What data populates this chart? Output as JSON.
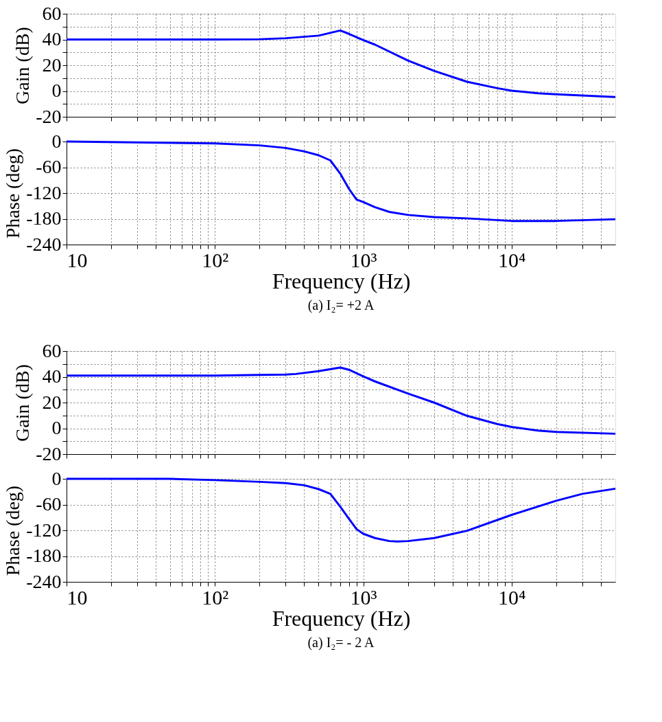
{
  "chart_data": [
    {
      "type": "line",
      "ylabel": "Gain (dB)",
      "x": [
        10,
        100,
        200,
        300,
        500,
        700,
        800,
        1000,
        1200,
        2000,
        3000,
        5000,
        8000,
        10000,
        15000,
        20000,
        50000
      ],
      "series": [
        {
          "color": "#0000ff",
          "values": [
            40,
            40,
            40.2,
            41,
            43,
            47,
            44.4,
            39.5,
            36,
            23.7,
            15.7,
            7.2,
            2.2,
            0.3,
            -1.7,
            -2.5,
            -4.7
          ]
        }
      ],
      "xlim": [
        10,
        50000
      ],
      "ylim": [
        -20,
        60
      ],
      "log": "x",
      "grid": true,
      "tick_labels": "y",
      "line_style": "solid",
      "xticks": [
        10,
        20,
        30,
        40,
        50,
        60,
        70,
        80,
        90,
        100,
        200,
        300,
        400,
        500,
        600,
        700,
        800,
        900,
        1000,
        2000,
        3000,
        4000,
        5000,
        6000,
        7000,
        8000,
        9000,
        10000,
        20000,
        30000,
        40000
      ],
      "yticks": [
        -20,
        {
          "value": -10,
          "label": null
        },
        0,
        {
          "value": 10,
          "label": null
        },
        20,
        {
          "value": 30,
          "label": null
        },
        40,
        {
          "value": 50,
          "label": null
        },
        60
      ]
    },
    {
      "type": "line",
      "ylabel": "Phase (deg)",
      "xlabel": "Frequency  (Hz)",
      "annotations": [
        "(a) I₂= +2 A"
      ],
      "x": [
        10,
        100,
        200,
        300,
        400,
        500,
        600,
        700,
        800,
        900,
        1000,
        1200,
        1500,
        2000,
        3000,
        5000,
        10000,
        20000,
        50000
      ],
      "series": [
        {
          "color": "#0000ff",
          "values": [
            0,
            -4.5,
            -9,
            -15,
            -23,
            -32,
            -44,
            -75,
            -110,
            -135,
            -141,
            -153,
            -164,
            -171,
            -176,
            -179,
            -185,
            -185,
            -181
          ]
        }
      ],
      "xlim": [
        10,
        50000
      ],
      "ylim": [
        -240,
        0
      ],
      "log": "x",
      "grid": true,
      "line_style": "solid",
      "xticks": [
        10,
        {
          "value": 20,
          "label": null
        },
        {
          "value": 30,
          "label": null
        },
        {
          "value": 40,
          "label": null
        },
        {
          "value": 50,
          "label": null
        },
        {
          "value": 60,
          "label": null
        },
        {
          "value": 70,
          "label": null
        },
        {
          "value": 80,
          "label": null
        },
        {
          "value": 90,
          "label": null
        },
        {
          "value": 100,
          "label": "10²"
        },
        {
          "value": 200,
          "label": null
        },
        {
          "value": 300,
          "label": null
        },
        {
          "value": 400,
          "label": null
        },
        {
          "value": 500,
          "label": null
        },
        {
          "value": 600,
          "label": null
        },
        {
          "value": 700,
          "label": null
        },
        {
          "value": 800,
          "label": null
        },
        {
          "value": 900,
          "label": null
        },
        {
          "value": 1000,
          "label": "10³"
        },
        {
          "value": 2000,
          "label": null
        },
        {
          "value": 3000,
          "label": null
        },
        {
          "value": 4000,
          "label": null
        },
        {
          "value": 5000,
          "label": null
        },
        {
          "value": 6000,
          "label": null
        },
        {
          "value": 7000,
          "label": null
        },
        {
          "value": 8000,
          "label": null
        },
        {
          "value": 9000,
          "label": null
        },
        {
          "value": 10000,
          "label": "10⁴"
        },
        {
          "value": 20000,
          "label": null
        },
        {
          "value": 30000,
          "label": null
        },
        {
          "value": 40000,
          "label": null
        }
      ],
      "yticks": [
        -240,
        -180,
        -120,
        -60,
        0
      ]
    },
    {
      "type": "line",
      "ylabel": "Gain (dB)",
      "x": [
        10,
        100,
        200,
        300,
        350,
        500,
        700,
        800,
        1000,
        1200,
        2000,
        3000,
        5000,
        8000,
        10000,
        15000,
        20000,
        50000
      ],
      "series": [
        {
          "color": "#0000ff",
          "values": [
            41,
            41,
            41.5,
            41.7,
            42.2,
            44.4,
            47.2,
            45.5,
            40.3,
            36.4,
            27,
            20,
            9.7,
            3.3,
            1.1,
            -1.7,
            -2.8,
            -4.2
          ]
        }
      ],
      "xlim": [
        10,
        50000
      ],
      "ylim": [
        -20,
        60
      ],
      "log": "x",
      "grid": true,
      "tick_labels": "y",
      "line_style": "solid",
      "xticks": [
        10,
        20,
        30,
        40,
        50,
        60,
        70,
        80,
        90,
        100,
        200,
        300,
        400,
        500,
        600,
        700,
        800,
        900,
        1000,
        2000,
        3000,
        4000,
        5000,
        6000,
        7000,
        8000,
        9000,
        10000,
        20000,
        30000,
        40000
      ],
      "yticks": [
        -20,
        {
          "value": -10,
          "label": null
        },
        0,
        {
          "value": 10,
          "label": null
        },
        20,
        {
          "value": 30,
          "label": null
        },
        40,
        {
          "value": 50,
          "label": null
        },
        60
      ]
    },
    {
      "type": "line",
      "ylabel": "Phase (deg)",
      "xlabel": "Frequency  (Hz)",
      "annotations": [
        "(a) I₂= - 2 A"
      ],
      "x": [
        10,
        50,
        100,
        200,
        300,
        400,
        500,
        600,
        700,
        800,
        900,
        1000,
        1200,
        1500,
        1700,
        2000,
        3000,
        5000,
        10000,
        20000,
        30000,
        50000
      ],
      "series": [
        {
          "color": "#0000ff",
          "values": [
            0,
            0,
            -3,
            -7,
            -10,
            -15,
            -24,
            -35,
            -65,
            -93,
            -117,
            -128,
            -138,
            -145,
            -146,
            -145,
            -138,
            -121,
            -84,
            -51,
            -35,
            -23
          ]
        }
      ],
      "xlim": [
        10,
        50000
      ],
      "ylim": [
        -240,
        0
      ],
      "log": "x",
      "grid": true,
      "line_style": "solid",
      "xticks": [
        10,
        {
          "value": 20,
          "label": null
        },
        {
          "value": 30,
          "label": null
        },
        {
          "value": 40,
          "label": null
        },
        {
          "value": 50,
          "label": null
        },
        {
          "value": 60,
          "label": null
        },
        {
          "value": 70,
          "label": null
        },
        {
          "value": 80,
          "label": null
        },
        {
          "value": 90,
          "label": null
        },
        {
          "value": 100,
          "label": "10²"
        },
        {
          "value": 200,
          "label": null
        },
        {
          "value": 300,
          "label": null
        },
        {
          "value": 400,
          "label": null
        },
        {
          "value": 500,
          "label": null
        },
        {
          "value": 600,
          "label": null
        },
        {
          "value": 700,
          "label": null
        },
        {
          "value": 800,
          "label": null
        },
        {
          "value": 900,
          "label": null
        },
        {
          "value": 1000,
          "label": "10³"
        },
        {
          "value": 2000,
          "label": null
        },
        {
          "value": 3000,
          "label": null
        },
        {
          "value": 4000,
          "label": null
        },
        {
          "value": 5000,
          "label": null
        },
        {
          "value": 6000,
          "label": null
        },
        {
          "value": 7000,
          "label": null
        },
        {
          "value": 8000,
          "label": null
        },
        {
          "value": 9000,
          "label": null
        },
        {
          "value": 10000,
          "label": "10⁴"
        },
        {
          "value": 20000,
          "label": null
        },
        {
          "value": 30000,
          "label": null
        },
        {
          "value": 40000,
          "label": null
        }
      ],
      "yticks": [
        -240,
        -180,
        -120,
        -60,
        0
      ]
    }
  ]
}
